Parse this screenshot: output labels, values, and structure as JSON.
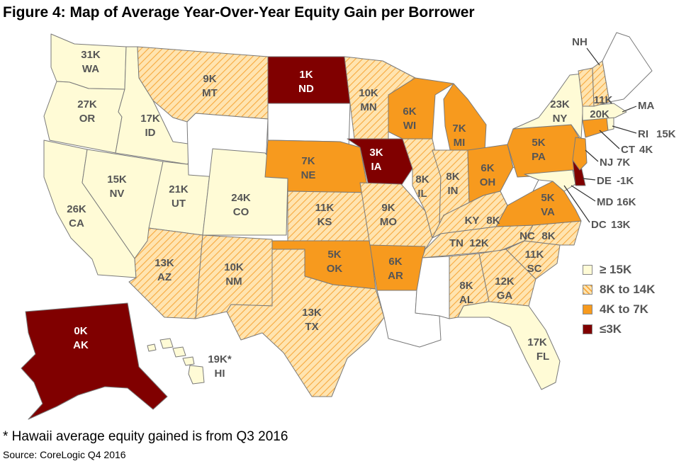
{
  "title": "Figure 4: Map of Average Year-Over-Year Equity Gain per Borrower",
  "footnote": "* Hawaii average equity gained is from Q3 2016",
  "source": "Source: CoreLogic Q4 2016",
  "colors": {
    "high": "#fffbd6",
    "mid_base": "#ffe4b0",
    "mid_stripe": "#f7a93e",
    "low": "#f79a1e",
    "lowest": "#800000",
    "none": "#ffffff"
  },
  "legend": [
    {
      "label": "≥ 15K",
      "category": "high"
    },
    {
      "label": "8K to 14K",
      "category": "mid"
    },
    {
      "label": "4K to 7K",
      "category": "low"
    },
    {
      "label": "≤3K",
      "category": "lowest"
    }
  ],
  "states": [
    {
      "abbr": "WA",
      "value": "31K",
      "category": "high"
    },
    {
      "abbr": "OR",
      "value": "27K",
      "category": "high"
    },
    {
      "abbr": "CA",
      "value": "26K",
      "category": "high"
    },
    {
      "abbr": "ID",
      "value": "17K",
      "category": "high"
    },
    {
      "abbr": "NV",
      "value": "15K",
      "category": "high"
    },
    {
      "abbr": "UT",
      "value": "21K",
      "category": "high"
    },
    {
      "abbr": "CO",
      "value": "24K",
      "category": "high"
    },
    {
      "abbr": "MT",
      "value": "9K",
      "category": "mid"
    },
    {
      "abbr": "AZ",
      "value": "13K",
      "category": "mid"
    },
    {
      "abbr": "NM",
      "value": "10K",
      "category": "mid"
    },
    {
      "abbr": "TX",
      "value": "13K",
      "category": "mid"
    },
    {
      "abbr": "KS",
      "value": "11K",
      "category": "mid"
    },
    {
      "abbr": "MN",
      "value": "10K",
      "category": "mid"
    },
    {
      "abbr": "MO",
      "value": "9K",
      "category": "mid"
    },
    {
      "abbr": "IL",
      "value": "8K",
      "category": "mid"
    },
    {
      "abbr": "IN",
      "value": "8K",
      "category": "mid"
    },
    {
      "abbr": "ND",
      "value": "1K",
      "category": "lowest"
    },
    {
      "abbr": "IA",
      "value": "3K",
      "category": "lowest"
    },
    {
      "abbr": "AK",
      "value": "0K",
      "category": "lowest"
    },
    {
      "abbr": "NE",
      "value": "7K",
      "category": "low"
    },
    {
      "abbr": "OK",
      "value": "5K",
      "category": "low"
    },
    {
      "abbr": "AR",
      "value": "6K",
      "category": "low"
    },
    {
      "abbr": "WI",
      "value": "6K",
      "category": "low"
    },
    {
      "abbr": "MI",
      "value": "7K",
      "category": "low"
    },
    {
      "abbr": "OH",
      "value": "6K",
      "category": "low"
    },
    {
      "abbr": "PA",
      "value": "5K",
      "category": "low"
    },
    {
      "abbr": "VA",
      "value": "5K",
      "category": "low"
    },
    {
      "abbr": "NY",
      "value": "23K",
      "category": "high"
    },
    {
      "abbr": "KY",
      "value": "8K",
      "category": "mid"
    },
    {
      "abbr": "TN",
      "value": "12K",
      "category": "mid"
    },
    {
      "abbr": "NC",
      "value": "8K",
      "category": "mid"
    },
    {
      "abbr": "SC",
      "value": "11K",
      "category": "mid"
    },
    {
      "abbr": "GA",
      "value": "12K",
      "category": "mid"
    },
    {
      "abbr": "AL",
      "value": "8K",
      "category": "mid"
    },
    {
      "abbr": "FL",
      "value": "17K",
      "category": "high"
    },
    {
      "abbr": "HI",
      "value": "19K*",
      "category": "high"
    },
    {
      "abbr": "NH",
      "value": "",
      "category": "mid"
    },
    {
      "abbr": "VT",
      "value": "11K",
      "category": "mid"
    },
    {
      "abbr": "MA",
      "value": "20K",
      "category": "high"
    },
    {
      "abbr": "RI",
      "value": "15K",
      "category": "high"
    },
    {
      "abbr": "CT",
      "value": "4K",
      "category": "low"
    },
    {
      "abbr": "NJ",
      "value": "7K",
      "category": "low"
    },
    {
      "abbr": "DE",
      "value": "-1K",
      "category": "lowest"
    },
    {
      "abbr": "MD",
      "value": "16K",
      "category": "high"
    },
    {
      "abbr": "DC",
      "value": "13K",
      "category": "mid"
    },
    {
      "abbr": "WY",
      "value": "",
      "category": "none"
    },
    {
      "abbr": "SD",
      "value": "",
      "category": "none"
    },
    {
      "abbr": "LA",
      "value": "",
      "category": "none"
    },
    {
      "abbr": "MS",
      "value": "",
      "category": "none"
    },
    {
      "abbr": "WV",
      "value": "",
      "category": "none"
    },
    {
      "abbr": "ME",
      "value": "",
      "category": "none"
    }
  ]
}
